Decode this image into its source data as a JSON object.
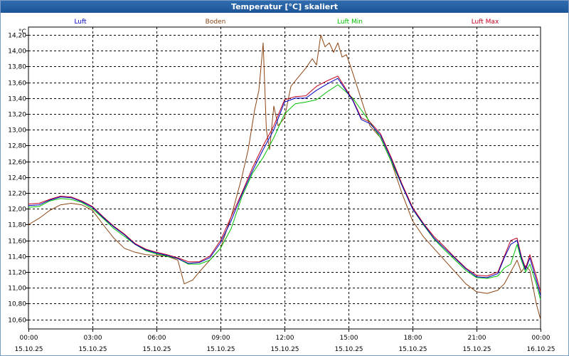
{
  "window": {
    "title": "Temperatur [°C] skaliert"
  },
  "chart_data": {
    "type": "line",
    "title": "Temperatur [°C] skaliert",
    "ylabel": "°C",
    "xlabel": "",
    "ylim": [
      10.48,
      14.3
    ],
    "yticks": [
      "14,20",
      "14,00",
      "13,80",
      "13,60",
      "13,40",
      "13,20",
      "13,00",
      "12,80",
      "12,60",
      "12,40",
      "12,20",
      "12,00",
      "11,80",
      "11,60",
      "11,40",
      "11,20",
      "11,00",
      "10,80",
      "10,60"
    ],
    "ytick_values": [
      14.2,
      14.0,
      13.8,
      13.6,
      13.4,
      13.2,
      13.0,
      12.8,
      12.6,
      12.4,
      12.2,
      12.0,
      11.8,
      11.6,
      11.4,
      11.2,
      11.0,
      10.8,
      10.6
    ],
    "xlim": [
      0,
      24
    ],
    "xticks": [
      {
        "time": "00:00",
        "date": "15.10.25",
        "hour": 0
      },
      {
        "time": "03:00",
        "date": "15.10.25",
        "hour": 3
      },
      {
        "time": "06:00",
        "date": "15.10.25",
        "hour": 6
      },
      {
        "time": "09:00",
        "date": "15.10.25",
        "hour": 9
      },
      {
        "time": "12:00",
        "date": "15.10.25",
        "hour": 12
      },
      {
        "time": "15:00",
        "date": "15.10.25",
        "hour": 15
      },
      {
        "time": "18:00",
        "date": "15.10.25",
        "hour": 18
      },
      {
        "time": "21:00",
        "date": "15.10.25",
        "hour": 21
      },
      {
        "time": "00:00",
        "date": "16.10.25",
        "hour": 24
      }
    ],
    "grid": true,
    "series": [
      {
        "name": "Boden",
        "color": "#8b4513",
        "points": [
          [
            0,
            11.8
          ],
          [
            0.5,
            11.88
          ],
          [
            1,
            11.98
          ],
          [
            1.5,
            12.05
          ],
          [
            2,
            12.07
          ],
          [
            2.5,
            12.05
          ],
          [
            3,
            11.98
          ],
          [
            3.5,
            11.8
          ],
          [
            4,
            11.63
          ],
          [
            4.5,
            11.5
          ],
          [
            5,
            11.45
          ],
          [
            5.5,
            11.42
          ],
          [
            6,
            11.41
          ],
          [
            6.5,
            11.4
          ],
          [
            7,
            11.35
          ],
          [
            7.3,
            11.05
          ],
          [
            7.7,
            11.1
          ],
          [
            8,
            11.2
          ],
          [
            8.5,
            11.35
          ],
          [
            9,
            11.5
          ],
          [
            9.5,
            11.9
          ],
          [
            10,
            12.4
          ],
          [
            10.3,
            12.75
          ],
          [
            10.6,
            13.25
          ],
          [
            10.8,
            13.5
          ],
          [
            11,
            14.1
          ],
          [
            11.15,
            13.0
          ],
          [
            11.3,
            12.75
          ],
          [
            11.5,
            13.3
          ],
          [
            11.7,
            13.05
          ],
          [
            12,
            13.15
          ],
          [
            12.3,
            13.55
          ],
          [
            12.6,
            13.65
          ],
          [
            13,
            13.78
          ],
          [
            13.3,
            13.9
          ],
          [
            13.5,
            13.82
          ],
          [
            13.7,
            14.2
          ],
          [
            13.9,
            14.05
          ],
          [
            14.1,
            14.1
          ],
          [
            14.3,
            13.98
          ],
          [
            14.5,
            14.1
          ],
          [
            14.7,
            13.92
          ],
          [
            14.9,
            13.95
          ],
          [
            15.1,
            13.8
          ],
          [
            15.4,
            13.55
          ],
          [
            15.7,
            13.3
          ],
          [
            16,
            13.05
          ],
          [
            16.5,
            12.9
          ],
          [
            17,
            12.6
          ],
          [
            17.5,
            12.2
          ],
          [
            18,
            11.85
          ],
          [
            18.5,
            11.65
          ],
          [
            19,
            11.5
          ],
          [
            19.5,
            11.35
          ],
          [
            20,
            11.2
          ],
          [
            20.5,
            11.05
          ],
          [
            21,
            10.95
          ],
          [
            21.5,
            10.93
          ],
          [
            22,
            10.97
          ],
          [
            22.3,
            11.05
          ],
          [
            22.6,
            11.2
          ],
          [
            22.9,
            11.35
          ],
          [
            23.1,
            11.2
          ],
          [
            23.3,
            11.28
          ],
          [
            23.5,
            11.22
          ],
          [
            23.8,
            10.8
          ],
          [
            24,
            10.6
          ]
        ]
      },
      {
        "name": "Luft Min",
        "color": "#00c000",
        "points": [
          [
            0,
            12.02
          ],
          [
            0.5,
            12.03
          ],
          [
            1,
            12.1
          ],
          [
            1.5,
            12.13
          ],
          [
            2,
            12.12
          ],
          [
            2.5,
            12.08
          ],
          [
            3,
            12.0
          ],
          [
            3.5,
            11.88
          ],
          [
            4,
            11.75
          ],
          [
            4.5,
            11.65
          ],
          [
            5,
            11.55
          ],
          [
            5.5,
            11.47
          ],
          [
            6,
            11.43
          ],
          [
            6.5,
            11.4
          ],
          [
            7,
            11.37
          ],
          [
            7.5,
            11.3
          ],
          [
            8,
            11.3
          ],
          [
            8.5,
            11.35
          ],
          [
            9,
            11.5
          ],
          [
            9.5,
            11.75
          ],
          [
            10,
            12.15
          ],
          [
            10.5,
            12.45
          ],
          [
            11,
            12.65
          ],
          [
            11.5,
            12.9
          ],
          [
            12,
            13.2
          ],
          [
            12.5,
            13.33
          ],
          [
            13,
            13.35
          ],
          [
            13.5,
            13.38
          ],
          [
            14,
            13.48
          ],
          [
            14.5,
            13.57
          ],
          [
            14.8,
            13.5
          ],
          [
            15.2,
            13.4
          ],
          [
            15.6,
            13.25
          ],
          [
            16,
            13.1
          ],
          [
            16.5,
            12.9
          ],
          [
            17,
            12.6
          ],
          [
            17.5,
            12.3
          ],
          [
            18,
            12.0
          ],
          [
            18.5,
            11.8
          ],
          [
            19,
            11.62
          ],
          [
            19.5,
            11.48
          ],
          [
            20,
            11.35
          ],
          [
            20.5,
            11.22
          ],
          [
            21,
            11.13
          ],
          [
            21.5,
            11.12
          ],
          [
            22,
            11.15
          ],
          [
            22.3,
            11.25
          ],
          [
            22.6,
            11.3
          ],
          [
            22.9,
            11.55
          ],
          [
            23.1,
            11.35
          ],
          [
            23.3,
            11.2
          ],
          [
            23.5,
            11.3
          ],
          [
            23.8,
            11.05
          ],
          [
            24,
            10.85
          ]
        ]
      },
      {
        "name": "Luft Max",
        "color": "#c00020",
        "points": [
          [
            0,
            12.06
          ],
          [
            0.5,
            12.07
          ],
          [
            1,
            12.12
          ],
          [
            1.5,
            12.16
          ],
          [
            2,
            12.15
          ],
          [
            2.5,
            12.1
          ],
          [
            3,
            12.03
          ],
          [
            3.5,
            11.9
          ],
          [
            4,
            11.78
          ],
          [
            4.5,
            11.68
          ],
          [
            5,
            11.56
          ],
          [
            5.5,
            11.49
          ],
          [
            6,
            11.45
          ],
          [
            6.5,
            11.42
          ],
          [
            7,
            11.38
          ],
          [
            7.5,
            11.33
          ],
          [
            8,
            11.33
          ],
          [
            8.5,
            11.4
          ],
          [
            9,
            11.6
          ],
          [
            9.5,
            11.9
          ],
          [
            10,
            12.2
          ],
          [
            10.5,
            12.52
          ],
          [
            11,
            12.8
          ],
          [
            11.5,
            13.05
          ],
          [
            12,
            13.38
          ],
          [
            12.5,
            13.42
          ],
          [
            13,
            13.43
          ],
          [
            13.5,
            13.55
          ],
          [
            14,
            13.62
          ],
          [
            14.5,
            13.68
          ],
          [
            14.8,
            13.55
          ],
          [
            15.2,
            13.38
          ],
          [
            15.6,
            13.15
          ],
          [
            16,
            13.1
          ],
          [
            16.5,
            12.95
          ],
          [
            17,
            12.65
          ],
          [
            17.5,
            12.32
          ],
          [
            18,
            12.02
          ],
          [
            18.5,
            11.82
          ],
          [
            19,
            11.65
          ],
          [
            19.5,
            11.52
          ],
          [
            20,
            11.38
          ],
          [
            20.5,
            11.25
          ],
          [
            21,
            11.16
          ],
          [
            21.5,
            11.15
          ],
          [
            22,
            11.2
          ],
          [
            22.3,
            11.4
          ],
          [
            22.6,
            11.6
          ],
          [
            22.9,
            11.63
          ],
          [
            23.1,
            11.4
          ],
          [
            23.3,
            11.25
          ],
          [
            23.5,
            11.42
          ],
          [
            23.8,
            11.15
          ],
          [
            24,
            10.95
          ]
        ]
      },
      {
        "name": "Luft",
        "color": "#0000c0",
        "points": [
          [
            0,
            12.04
          ],
          [
            0.5,
            12.05
          ],
          [
            1,
            12.11
          ],
          [
            1.5,
            12.15
          ],
          [
            2,
            12.14
          ],
          [
            2.5,
            12.09
          ],
          [
            3,
            12.02
          ],
          [
            3.5,
            11.89
          ],
          [
            4,
            11.77
          ],
          [
            4.5,
            11.67
          ],
          [
            5,
            11.55
          ],
          [
            5.5,
            11.48
          ],
          [
            6,
            11.44
          ],
          [
            6.5,
            11.41
          ],
          [
            7,
            11.37
          ],
          [
            7.5,
            11.31
          ],
          [
            8,
            11.32
          ],
          [
            8.5,
            11.38
          ],
          [
            9,
            11.57
          ],
          [
            9.5,
            11.85
          ],
          [
            10,
            12.18
          ],
          [
            10.5,
            12.48
          ],
          [
            11,
            12.75
          ],
          [
            11.5,
            13.0
          ],
          [
            12,
            13.35
          ],
          [
            12.5,
            13.4
          ],
          [
            13,
            13.4
          ],
          [
            13.5,
            13.5
          ],
          [
            14,
            13.58
          ],
          [
            14.5,
            13.65
          ],
          [
            14.8,
            13.53
          ],
          [
            15.2,
            13.37
          ],
          [
            15.6,
            13.13
          ],
          [
            16,
            13.08
          ],
          [
            16.5,
            12.93
          ],
          [
            17,
            12.63
          ],
          [
            17.5,
            12.3
          ],
          [
            18,
            12.0
          ],
          [
            18.5,
            11.81
          ],
          [
            19,
            11.63
          ],
          [
            19.5,
            11.5
          ],
          [
            20,
            11.37
          ],
          [
            20.5,
            11.24
          ],
          [
            21,
            11.14
          ],
          [
            21.5,
            11.13
          ],
          [
            22,
            11.18
          ],
          [
            22.3,
            11.38
          ],
          [
            22.6,
            11.55
          ],
          [
            22.9,
            11.6
          ],
          [
            23.1,
            11.38
          ],
          [
            23.3,
            11.23
          ],
          [
            23.5,
            11.38
          ],
          [
            23.8,
            11.1
          ],
          [
            24,
            10.9
          ]
        ]
      }
    ]
  }
}
